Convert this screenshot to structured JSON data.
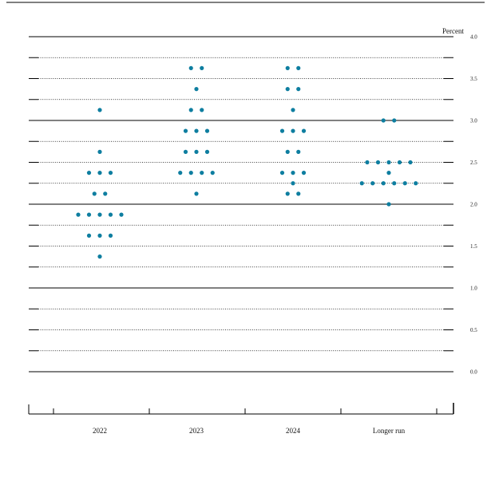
{
  "chart_data": {
    "type": "scatter",
    "title": "",
    "ylabel": "Percent",
    "ylim": [
      0.0,
      4.0
    ],
    "yticks": [
      "0.0",
      "0.5",
      "1.0",
      "1.5",
      "2.0",
      "2.5",
      "3.0",
      "3.5",
      "4.0"
    ],
    "categories": [
      "2022",
      "2023",
      "2024",
      "Longer run"
    ],
    "dot_color": "#0e7ea0",
    "grid": true,
    "series": [
      {
        "category": "2022",
        "points": [
          {
            "y": 3.125,
            "count": 1
          },
          {
            "y": 2.625,
            "count": 1
          },
          {
            "y": 2.375,
            "count": 3
          },
          {
            "y": 2.125,
            "count": 2
          },
          {
            "y": 1.875,
            "count": 5
          },
          {
            "y": 1.625,
            "count": 3
          },
          {
            "y": 1.375,
            "count": 1
          }
        ]
      },
      {
        "category": "2023",
        "points": [
          {
            "y": 3.625,
            "count": 2
          },
          {
            "y": 3.375,
            "count": 1
          },
          {
            "y": 3.125,
            "count": 2
          },
          {
            "y": 2.875,
            "count": 3
          },
          {
            "y": 2.625,
            "count": 3
          },
          {
            "y": 2.375,
            "count": 4
          },
          {
            "y": 2.125,
            "count": 1
          }
        ]
      },
      {
        "category": "2024",
        "points": [
          {
            "y": 3.625,
            "count": 2
          },
          {
            "y": 3.375,
            "count": 2
          },
          {
            "y": 3.125,
            "count": 1
          },
          {
            "y": 2.875,
            "count": 3
          },
          {
            "y": 2.625,
            "count": 2
          },
          {
            "y": 2.375,
            "count": 3
          },
          {
            "y": 2.25,
            "count": 1
          },
          {
            "y": 2.125,
            "count": 2
          }
        ]
      },
      {
        "category": "Longer run",
        "points": [
          {
            "y": 3.0,
            "count": 2
          },
          {
            "y": 2.5,
            "count": 5
          },
          {
            "y": 2.375,
            "count": 1
          },
          {
            "y": 2.25,
            "count": 6
          },
          {
            "y": 2.0,
            "count": 1
          }
        ]
      }
    ]
  }
}
